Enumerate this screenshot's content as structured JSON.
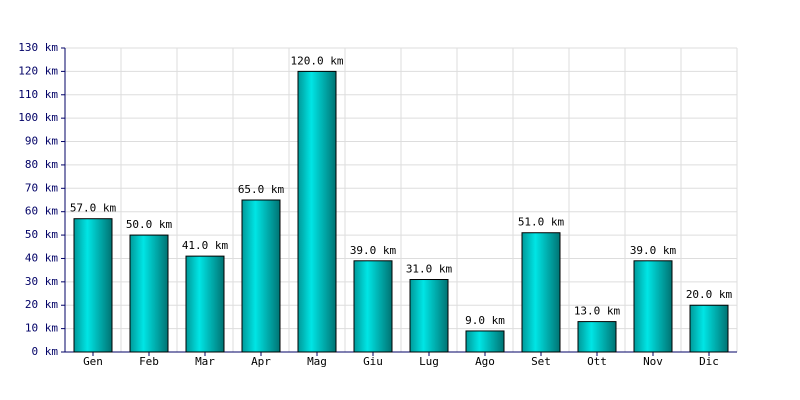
{
  "chart_data": {
    "type": "bar",
    "categories": [
      "Gen",
      "Feb",
      "Mar",
      "Apr",
      "Mag",
      "Giu",
      "Lug",
      "Ago",
      "Set",
      "Ott",
      "Nov",
      "Dic"
    ],
    "values": [
      57,
      50,
      41,
      65,
      120,
      39,
      31,
      9,
      51,
      13,
      39,
      20
    ],
    "value_labels": [
      "57.0 km",
      "50.0 km",
      "41.0 km",
      "65.0 km",
      "120.0 km",
      "39.0 km",
      "31.0 km",
      "9.0 km",
      "51.0 km",
      "13.0 km",
      "39.0 km",
      "20.0 km"
    ],
    "color": "#00e5e5",
    "ylim": [
      0,
      130
    ],
    "yticks": [
      {
        "value": 0,
        "label": "0 km"
      },
      {
        "value": 10,
        "label": "10 km"
      },
      {
        "value": 20,
        "label": "20 km"
      },
      {
        "value": 30,
        "label": "30 km"
      },
      {
        "value": 40,
        "label": "40 km"
      },
      {
        "value": 50,
        "label": "50 km"
      },
      {
        "value": 60,
        "label": "60 km"
      },
      {
        "value": 70,
        "label": "70 km"
      },
      {
        "value": 80,
        "label": "80 km"
      },
      {
        "value": 90,
        "label": "90 km"
      },
      {
        "value": 100,
        "label": "100 km"
      },
      {
        "value": 110,
        "label": "110 km"
      },
      {
        "value": 120,
        "label": "120 km"
      },
      {
        "value": 130,
        "label": "130 km"
      }
    ],
    "grid": true
  }
}
